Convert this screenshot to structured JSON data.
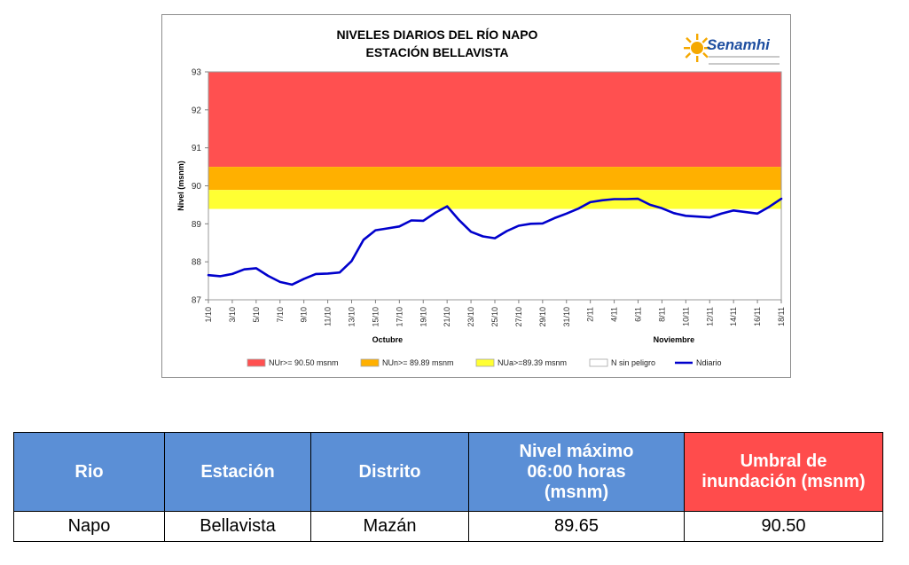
{
  "chart": {
    "title_line1": "NIVELES DIARIOS DEL RÍO NAPO",
    "title_line2": "ESTACIÓN BELLAVISTA",
    "logo_text": "Senamhi"
  },
  "chart_data": {
    "type": "line",
    "ylabel": "Nivel (msnm)",
    "ylim": [
      87,
      93
    ],
    "yticks": [
      "87",
      "88",
      "89",
      "90",
      "91",
      "92",
      "93"
    ],
    "xtick_labels": [
      "1/10",
      "3/10",
      "5/10",
      "7/10",
      "9/10",
      "11/10",
      "13/10",
      "15/10",
      "17/10",
      "19/10",
      "21/10",
      "23/10",
      "25/10",
      "27/10",
      "29/10",
      "31/10",
      "2/11",
      "4/11",
      "6/11",
      "8/11",
      "10/11",
      "12/11",
      "14/11",
      "16/11",
      "18/11"
    ],
    "month_labels": [
      {
        "label": "Octubre",
        "day_index": 15
      },
      {
        "label": "Noviembre",
        "day_index": 39
      }
    ],
    "grid": false,
    "legend_placement": "bottom",
    "bands": [
      {
        "name": "NUr>= 90.50 msnm",
        "from": 90.5,
        "to": 93,
        "color": "#ff5050"
      },
      {
        "name": "NUn>= 89.89 msnm",
        "from": 89.89,
        "to": 90.5,
        "color": "#ffb000"
      },
      {
        "name": "NUa>=89.39 msnm",
        "from": 89.39,
        "to": 89.89,
        "color": "#ffff33"
      },
      {
        "name": "N sin peligro",
        "from": 87,
        "to": 89.39,
        "color": "#ffffff"
      }
    ],
    "series": [
      {
        "name": "Ndiario",
        "color": "#0000cc",
        "x": [
          "1/10",
          "2/10",
          "3/10",
          "4/10",
          "5/10",
          "6/10",
          "7/10",
          "8/10",
          "9/10",
          "10/10",
          "11/10",
          "12/10",
          "13/10",
          "14/10",
          "15/10",
          "16/10",
          "17/10",
          "18/10",
          "19/10",
          "20/10",
          "21/10",
          "22/10",
          "23/10",
          "24/10",
          "25/10",
          "26/10",
          "27/10",
          "28/10",
          "29/10",
          "30/10",
          "31/10",
          "1/11",
          "2/11",
          "3/11",
          "4/11",
          "5/11",
          "6/11",
          "7/11",
          "8/11",
          "9/11",
          "10/11",
          "11/11",
          "12/11",
          "13/11",
          "14/11",
          "15/11",
          "16/11",
          "17/11",
          "18/11"
        ],
        "values": [
          87.65,
          87.62,
          87.68,
          87.8,
          87.83,
          87.63,
          87.47,
          87.4,
          87.55,
          87.68,
          87.69,
          87.72,
          88.02,
          88.58,
          88.83,
          88.88,
          88.93,
          89.09,
          89.08,
          89.29,
          89.46,
          89.1,
          88.79,
          88.67,
          88.62,
          88.81,
          88.95,
          89.0,
          89.01,
          89.15,
          89.27,
          89.4,
          89.57,
          89.62,
          89.65,
          89.65,
          89.66,
          89.5,
          89.41,
          89.28,
          89.21,
          89.19,
          89.17,
          89.27,
          89.35,
          89.31,
          89.27,
          89.45,
          89.66
        ]
      }
    ]
  },
  "table": {
    "headers": {
      "rio": "Rio",
      "estacion": "Estación",
      "distrito": "Distrito",
      "nivel_line1": "Nivel máximo",
      "nivel_line2": "06:00 horas",
      "nivel_line3": "(msnm)",
      "umbral_line1": "Umbral de",
      "umbral_line2": "inundación (msnm)"
    },
    "row": {
      "rio": "Napo",
      "estacion": "Bellavista",
      "distrito": "Mazán",
      "nivel": "89.65",
      "umbral": "90.50"
    }
  }
}
